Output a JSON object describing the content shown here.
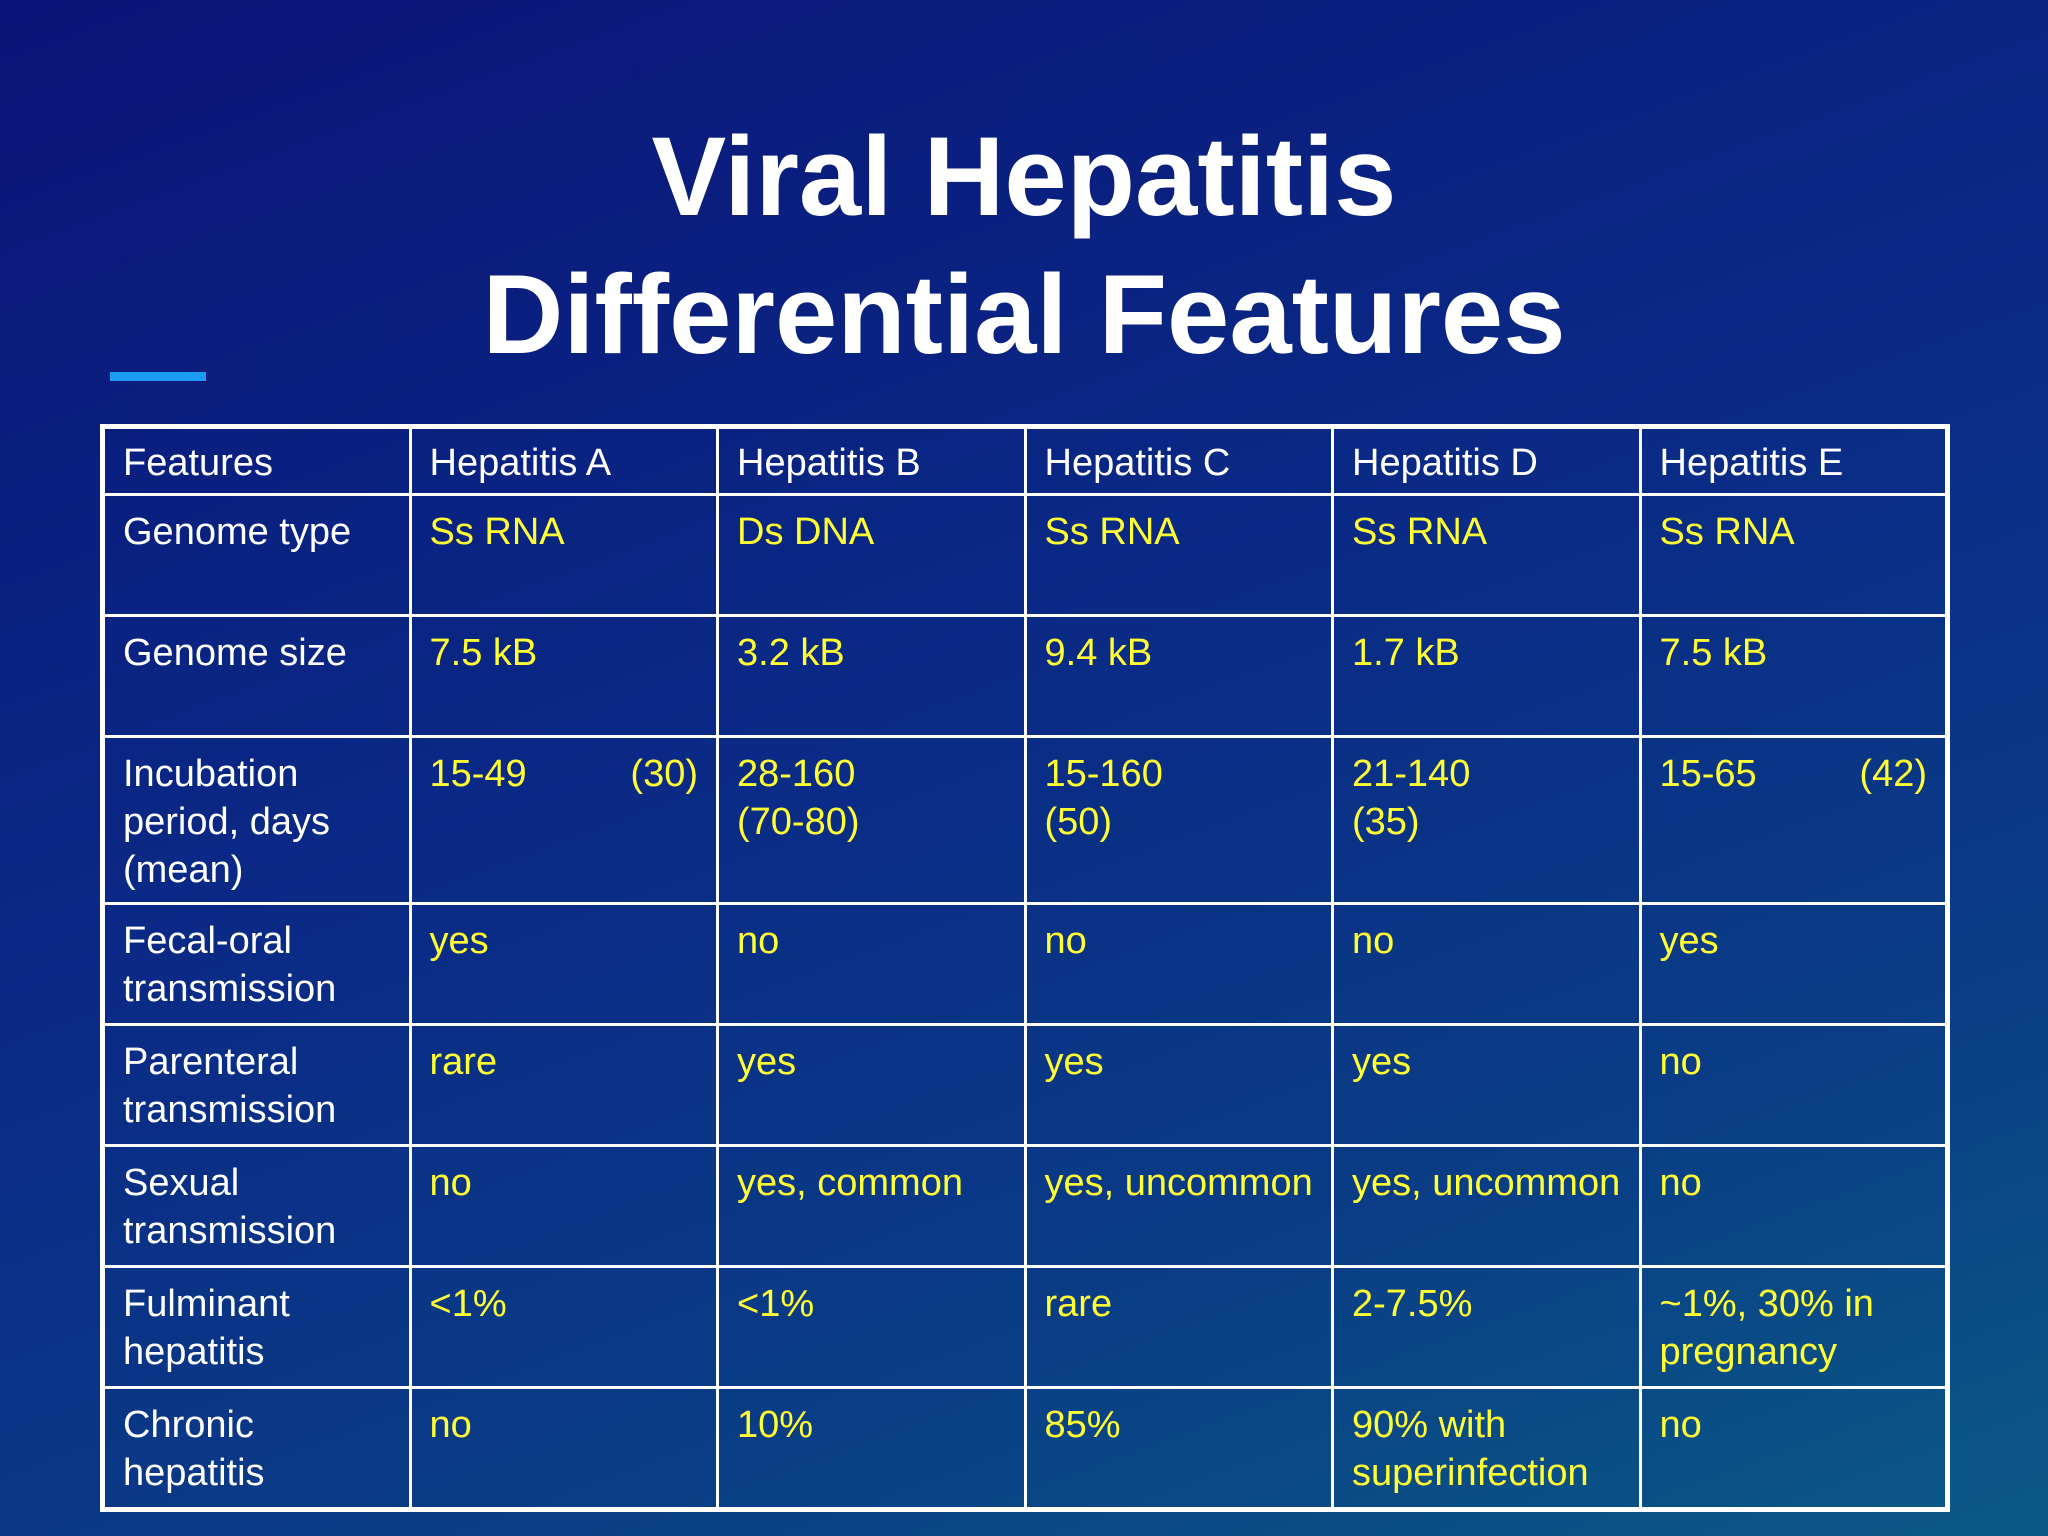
{
  "title": {
    "line1": "Viral Hepatitis",
    "line2": "Differential Features"
  },
  "colors": {
    "background_top": "#0b1478",
    "background_bottom": "#0a5a86",
    "accent": "#1a9cf0",
    "label_text": "#ffffff",
    "value_text": "#ffff33"
  },
  "table": {
    "headers": [
      "Features",
      "Hepatitis A",
      "Hepatitis B",
      "Hepatitis C",
      "Hepatitis D",
      "Hepatitis E"
    ],
    "rows": [
      {
        "label": "Genome type",
        "values": [
          "Ss RNA",
          "Ds DNA",
          "Ss RNA",
          "Ss RNA",
          "Ss RNA"
        ]
      },
      {
        "label": "Genome size",
        "values": [
          "7.5 kB",
          "3.2 kB",
          "9.4 kB",
          "1.7 kB",
          "7.5 kB"
        ]
      },
      {
        "label": "Incubation period, days (mean)",
        "values": [
          {
            "range": "15-49",
            "mean": "(30)"
          },
          {
            "range": "28-160",
            "mean": "(70-80)"
          },
          {
            "range": "15-160",
            "mean": "(50)"
          },
          {
            "range": "21-140",
            "mean": "(35)"
          },
          {
            "range": "15-65",
            "mean": "(42)"
          }
        ]
      },
      {
        "label": "Fecal-oral transmission",
        "values": [
          "yes",
          "no",
          "no",
          "no",
          "yes"
        ]
      },
      {
        "label": "Parenteral transmission",
        "values": [
          "rare",
          "yes",
          "yes",
          "yes",
          "no"
        ]
      },
      {
        "label": "Sexual transmission",
        "values": [
          "no",
          "yes, common",
          "yes, uncommon",
          "yes, uncommon",
          "no"
        ]
      },
      {
        "label": "Fulminant hepatitis",
        "values": [
          "<1%",
          "<1%",
          "rare",
          "2-7.5%",
          "~1%, 30% in pregnancy"
        ]
      },
      {
        "label": "Chronic hepatitis",
        "values": [
          "no",
          "10%",
          "85%",
          "90%  with superinfection",
          "no"
        ]
      }
    ]
  }
}
